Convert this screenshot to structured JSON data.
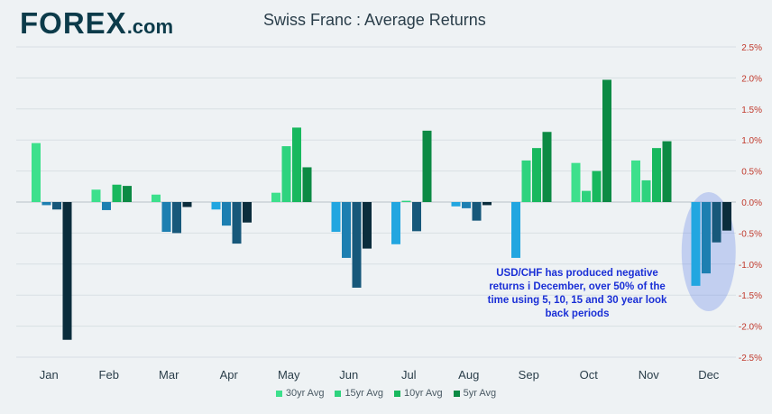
{
  "header": {
    "logo_text": "FOREX",
    "logo_suffix": ".com",
    "title": "Swiss Franc : Average Returns"
  },
  "annotation": "USD/CHF has produced negative returns i December, over 50% of the time using 5, 10, 15 and 30 year look back periods",
  "colors": {
    "positive": [
      "#3de08c",
      "#2ed37e",
      "#18b85e",
      "#0c8a44"
    ],
    "negative": [
      "#22a6e0",
      "#1d7fb1",
      "#17587a",
      "#0b2d3c"
    ],
    "tick_label": "#c0392b",
    "highlight": "#6f8fe8"
  },
  "chart_data": {
    "type": "bar",
    "title": "Swiss Franc : Average Returns",
    "xlabel": "",
    "ylabel": "",
    "ylim": [
      -2.5,
      2.5
    ],
    "yticks": [
      "2.5%",
      "2.0%",
      "1.5%",
      "1.0%",
      "0.5%",
      "0.0%",
      "-0.5%",
      "-1.0%",
      "-1.5%",
      "-2.0%",
      "-2.5%"
    ],
    "ytick_values": [
      2.5,
      2.0,
      1.5,
      1.0,
      0.5,
      0.0,
      -0.5,
      -1.0,
      -1.5,
      -2.0,
      -2.5
    ],
    "grid": true,
    "legend_position": "bottom",
    "categories": [
      "Jan",
      "Feb",
      "Mar",
      "Apr",
      "May",
      "Jun",
      "Jul",
      "Aug",
      "Sep",
      "Oct",
      "Nov",
      "Dec"
    ],
    "highlight_category": "Dec",
    "series": [
      {
        "name": "30yr Avg",
        "values": [
          0.95,
          0.2,
          0.12,
          -0.12,
          0.15,
          -0.48,
          -0.68,
          -0.07,
          -0.9,
          0.63,
          0.67,
          -1.35
        ]
      },
      {
        "name": "15yr Avg",
        "values": [
          -0.05,
          -0.13,
          -0.48,
          -0.38,
          0.9,
          -0.9,
          0.02,
          -0.1,
          0.67,
          0.18,
          0.35,
          -1.15
        ]
      },
      {
        "name": "10yr Avg",
        "values": [
          -0.12,
          0.28,
          -0.5,
          -0.67,
          1.2,
          -1.38,
          -0.47,
          -0.3,
          0.87,
          0.5,
          0.87,
          -0.65
        ]
      },
      {
        "name": "5yr Avg",
        "values": [
          -2.22,
          0.26,
          -0.08,
          -0.33,
          0.56,
          -0.75,
          1.15,
          -0.05,
          1.13,
          1.97,
          0.98,
          -0.46
        ]
      }
    ]
  }
}
